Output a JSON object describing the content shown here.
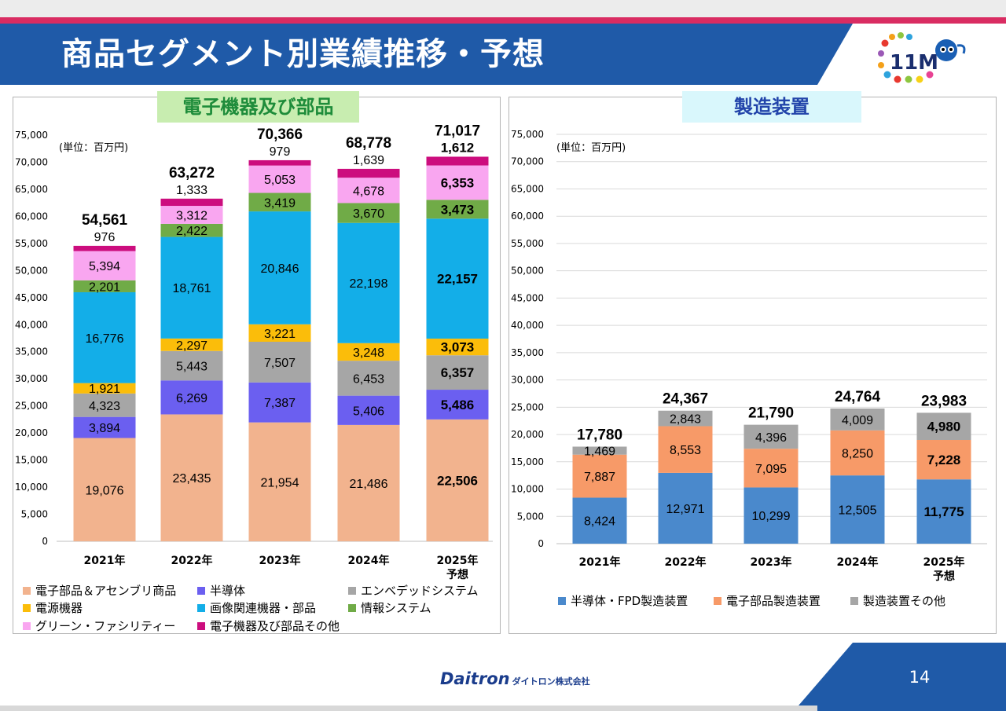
{
  "slide": {
    "title": "商品セグメント別業績推移・予想",
    "page_number": "14"
  },
  "company": {
    "logo_text": "Daitron",
    "name_jp": "ダイトロン株式会社"
  },
  "colors": {
    "header_blue": "#1f5aa8",
    "header_red": "#d92c62",
    "panel_border": "#b4b4b4"
  },
  "chart_data": [
    {
      "type": "bar",
      "stacked": true,
      "title": "電子機器及び部品",
      "unit_label": "(単位：百万円)",
      "categories": [
        "2021年",
        "2022年",
        "2023年",
        "2024年",
        "2025年予想"
      ],
      "category_lines": [
        [
          "2021年"
        ],
        [
          "2022年"
        ],
        [
          "2023年"
        ],
        [
          "2024年"
        ],
        [
          "2025年",
          "予想"
        ]
      ],
      "ylim": [
        0,
        75000
      ],
      "yticks": [
        0,
        5000,
        10000,
        15000,
        20000,
        25000,
        30000,
        35000,
        40000,
        45000,
        50000,
        55000,
        60000,
        65000,
        70000,
        75000
      ],
      "ytick_labels": [
        "0",
        "5,000",
        "10,000",
        "15,000",
        "20,000",
        "25,000",
        "30,000",
        "35,000",
        "40,000",
        "45,000",
        "50,000",
        "55,000",
        "60,000",
        "65,000",
        "70,000",
        "75,000"
      ],
      "grid": false,
      "totals": [
        54561,
        63272,
        70366,
        68778,
        71017
      ],
      "total_labels": [
        "54,561",
        "63,272",
        "70,366",
        "68,778",
        "71,017"
      ],
      "forecast_bold_index": 4,
      "series": [
        {
          "name": "電子部品＆アセンブリ商品",
          "color": "#f2b38e",
          "values": [
            19076,
            23435,
            21954,
            21486,
            22506
          ],
          "labels": [
            "19,076",
            "23,435",
            "21,954",
            "21,486",
            "22,506"
          ]
        },
        {
          "name": "半導体",
          "color": "#6b5ff0",
          "values": [
            3894,
            6269,
            7387,
            5406,
            5486
          ],
          "labels": [
            "3,894",
            "6,269",
            "7,387",
            "5,406",
            "5,486"
          ]
        },
        {
          "name": "エンベデッドシステム",
          "color": "#a6a6a6",
          "values": [
            4323,
            5443,
            7507,
            6453,
            6357
          ],
          "labels": [
            "4,323",
            "5,443",
            "7,507",
            "6,453",
            "6,357"
          ]
        },
        {
          "name": "電源機器",
          "color": "#fbbd0a",
          "values": [
            1921,
            2297,
            3221,
            3248,
            3073
          ],
          "labels": [
            "1,921",
            "2,297",
            "3,221",
            "3,248",
            "3,073"
          ]
        },
        {
          "name": "画像関連機器・部品",
          "color": "#13aee8",
          "values": [
            16776,
            18761,
            20846,
            22198,
            22157
          ],
          "labels": [
            "16,776",
            "18,761",
            "20,846",
            "22,198",
            "22,157"
          ]
        },
        {
          "name": "情報システム",
          "color": "#70ab47",
          "values": [
            2201,
            2422,
            3419,
            3670,
            3473
          ],
          "labels": [
            "2,201",
            "2,422",
            "3,419",
            "3,670",
            "3,473"
          ]
        },
        {
          "name": "グリーン・ファシリティー",
          "color": "#f9a6f0",
          "values": [
            5394,
            3312,
            5053,
            4678,
            6353
          ],
          "labels": [
            "5,394",
            "3,312",
            "5,053",
            "4,678",
            "6,353"
          ]
        },
        {
          "name": "電子機器及び部品その他",
          "color": "#cc0d7e",
          "values": [
            976,
            1333,
            979,
            1639,
            1612
          ],
          "labels": [
            "976",
            "1,333",
            "979",
            "1,639",
            "1,612"
          ]
        }
      ],
      "legend_position": "bottom"
    },
    {
      "type": "bar",
      "stacked": true,
      "title": "製造装置",
      "unit_label": "(単位：百万円)",
      "categories": [
        "2021年",
        "2022年",
        "2023年",
        "2024年",
        "2025年予想"
      ],
      "category_lines": [
        [
          "2021年"
        ],
        [
          "2022年"
        ],
        [
          "2023年"
        ],
        [
          "2024年"
        ],
        [
          "2025年",
          "予想"
        ]
      ],
      "ylim": [
        0,
        75000
      ],
      "yticks": [
        0,
        5000,
        10000,
        15000,
        20000,
        25000,
        30000,
        35000,
        40000,
        45000,
        50000,
        55000,
        60000,
        65000,
        70000,
        75000
      ],
      "ytick_labels": [
        "0",
        "5,000",
        "10,000",
        "15,000",
        "20,000",
        "25,000",
        "30,000",
        "35,000",
        "40,000",
        "45,000",
        "50,000",
        "55,000",
        "60,000",
        "65,000",
        "70,000",
        "75,000"
      ],
      "grid": true,
      "totals": [
        17780,
        24367,
        21790,
        24764,
        23983
      ],
      "total_labels": [
        "17,780",
        "24,367",
        "21,790",
        "24,764",
        "23,983"
      ],
      "forecast_bold_index": 4,
      "series": [
        {
          "name": "半導体・FPD製造装置",
          "color": "#4a89cc",
          "values": [
            8424,
            12971,
            10299,
            12505,
            11775
          ],
          "labels": [
            "8,424",
            "12,971",
            "10,299",
            "12,505",
            "11,775"
          ]
        },
        {
          "name": "電子部品製造装置",
          "color": "#f79a68",
          "values": [
            7887,
            8553,
            7095,
            8250,
            7228
          ],
          "labels": [
            "7,887",
            "8,553",
            "7,095",
            "8,250",
            "7,228"
          ]
        },
        {
          "name": "製造装置その他",
          "color": "#a6a6a6",
          "values": [
            1469,
            2843,
            4396,
            4009,
            4980
          ],
          "labels": [
            "1,469",
            "2,843",
            "4,396",
            "4,009",
            "4,980"
          ]
        }
      ],
      "legend_position": "bottom"
    }
  ]
}
